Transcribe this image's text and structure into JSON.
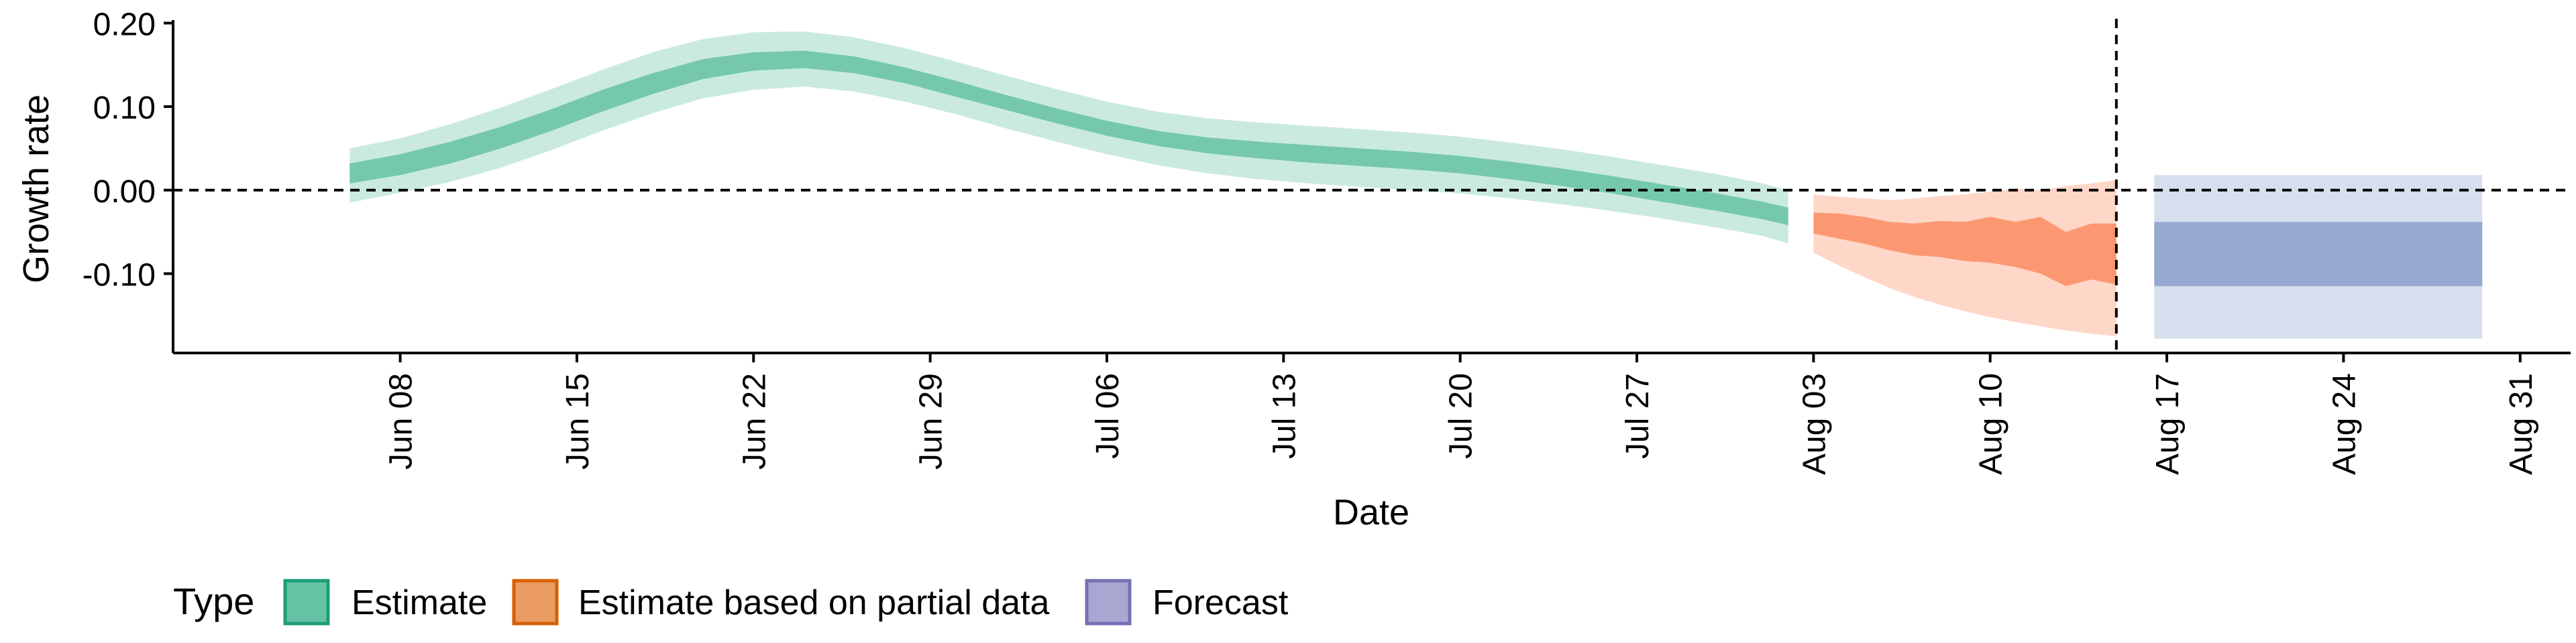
{
  "chart_data": {
    "type": "area",
    "xlabel": "Date",
    "ylabel": "Growth rate",
    "x_type": "date",
    "xlim": [
      "2020-05-30",
      "2020-09-02"
    ],
    "ylim": [
      -0.195,
      0.21
    ],
    "x_ticks": [
      {
        "date": "2020-06-08",
        "label": "Jun 08"
      },
      {
        "date": "2020-06-15",
        "label": "Jun 15"
      },
      {
        "date": "2020-06-22",
        "label": "Jun 22"
      },
      {
        "date": "2020-06-29",
        "label": "Jun 29"
      },
      {
        "date": "2020-07-06",
        "label": "Jul 06"
      },
      {
        "date": "2020-07-13",
        "label": "Jul 13"
      },
      {
        "date": "2020-07-20",
        "label": "Jul 20"
      },
      {
        "date": "2020-07-27",
        "label": "Jul 27"
      },
      {
        "date": "2020-08-03",
        "label": "Aug 03"
      },
      {
        "date": "2020-08-10",
        "label": "Aug 10"
      },
      {
        "date": "2020-08-17",
        "label": "Aug 17"
      },
      {
        "date": "2020-08-24",
        "label": "Aug 24"
      },
      {
        "date": "2020-08-31",
        "label": "Aug 31"
      }
    ],
    "y_ticks": [
      {
        "value": 0.2,
        "label": "0.20"
      },
      {
        "value": 0.1,
        "label": "0.10"
      },
      {
        "value": 0.0,
        "label": "0.00"
      },
      {
        "value": -0.1,
        "label": "-0.10"
      }
    ],
    "reference_lines": [
      {
        "axis": "y",
        "value": 0,
        "style": "dashed"
      },
      {
        "axis": "x",
        "value": "2020-08-15",
        "style": "dashed"
      }
    ],
    "legend": {
      "title": "Type",
      "position": "bottom-left",
      "entries": [
        "Estimate",
        "Estimate based on partial data",
        "Forecast"
      ]
    },
    "grid": false,
    "series": [
      {
        "name": "Estimate",
        "color": "#66c2a5",
        "x": [
          "2020-06-06",
          "2020-06-08",
          "2020-06-10",
          "2020-06-12",
          "2020-06-14",
          "2020-06-16",
          "2020-06-18",
          "2020-06-20",
          "2020-06-22",
          "2020-06-24",
          "2020-06-26",
          "2020-06-28",
          "2020-06-30",
          "2020-07-02",
          "2020-07-04",
          "2020-07-06",
          "2020-07-08",
          "2020-07-10",
          "2020-07-12",
          "2020-07-14",
          "2020-07-16",
          "2020-07-18",
          "2020-07-20",
          "2020-07-22",
          "2020-07-24",
          "2020-07-26",
          "2020-07-28",
          "2020-07-30",
          "2020-08-01",
          "2020-08-02"
        ],
        "lower_90": [
          -0.015,
          -0.003,
          0.01,
          0.027,
          0.048,
          0.071,
          0.092,
          0.11,
          0.12,
          0.124,
          0.118,
          0.106,
          0.091,
          0.074,
          0.058,
          0.043,
          0.03,
          0.02,
          0.013,
          0.008,
          0.004,
          0.0,
          -0.004,
          -0.01,
          -0.017,
          -0.025,
          -0.034,
          -0.044,
          -0.055,
          -0.064
        ],
        "lower_50": [
          0.008,
          0.018,
          0.032,
          0.05,
          0.071,
          0.094,
          0.115,
          0.133,
          0.143,
          0.146,
          0.14,
          0.128,
          0.112,
          0.096,
          0.08,
          0.065,
          0.053,
          0.044,
          0.038,
          0.033,
          0.029,
          0.025,
          0.02,
          0.013,
          0.005,
          -0.004,
          -0.014,
          -0.024,
          -0.035,
          -0.042
        ],
        "upper_50": [
          0.032,
          0.043,
          0.058,
          0.076,
          0.097,
          0.12,
          0.14,
          0.157,
          0.165,
          0.167,
          0.16,
          0.147,
          0.131,
          0.114,
          0.098,
          0.083,
          0.071,
          0.063,
          0.058,
          0.054,
          0.05,
          0.046,
          0.041,
          0.034,
          0.026,
          0.017,
          0.007,
          -0.003,
          -0.014,
          -0.021
        ],
        "upper_90": [
          0.05,
          0.062,
          0.079,
          0.099,
          0.121,
          0.144,
          0.165,
          0.181,
          0.189,
          0.19,
          0.183,
          0.17,
          0.154,
          0.137,
          0.121,
          0.106,
          0.094,
          0.086,
          0.081,
          0.077,
          0.073,
          0.069,
          0.064,
          0.057,
          0.049,
          0.04,
          0.03,
          0.02,
          0.008,
          0.0
        ]
      },
      {
        "name": "Estimate based on partial data",
        "color": "#fc8d62",
        "x": [
          "2020-08-03",
          "2020-08-04",
          "2020-08-05",
          "2020-08-06",
          "2020-08-07",
          "2020-08-08",
          "2020-08-09",
          "2020-08-10",
          "2020-08-11",
          "2020-08-12",
          "2020-08-13",
          "2020-08-14",
          "2020-08-15"
        ],
        "lower_90": [
          -0.075,
          -0.09,
          -0.104,
          -0.117,
          -0.128,
          -0.137,
          -0.145,
          -0.152,
          -0.158,
          -0.163,
          -0.168,
          -0.172,
          -0.175
        ],
        "lower_50": [
          -0.052,
          -0.058,
          -0.064,
          -0.072,
          -0.078,
          -0.08,
          -0.085,
          -0.087,
          -0.092,
          -0.1,
          -0.115,
          -0.107,
          -0.113
        ],
        "upper_50": [
          -0.027,
          -0.028,
          -0.032,
          -0.038,
          -0.04,
          -0.037,
          -0.038,
          -0.032,
          -0.038,
          -0.032,
          -0.05,
          -0.04,
          -0.04
        ],
        "upper_90": [
          -0.005,
          -0.008,
          -0.01,
          -0.012,
          -0.01,
          -0.007,
          -0.005,
          -0.002,
          0.002,
          0.0,
          0.005,
          0.008,
          0.012
        ]
      },
      {
        "name": "Forecast",
        "color": "#8da0cb",
        "x": [
          "2020-08-16",
          "2020-08-29"
        ],
        "lower_90": [
          -0.178,
          -0.178
        ],
        "lower_50": [
          -0.115,
          -0.115
        ],
        "upper_50": [
          -0.038,
          -0.038
        ],
        "upper_90": [
          0.018,
          0.018
        ]
      }
    ]
  }
}
